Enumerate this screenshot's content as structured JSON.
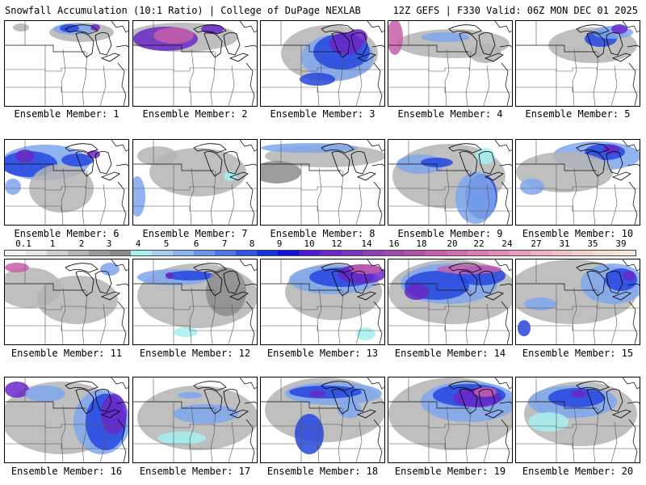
{
  "header": {
    "left": "Snowfall Accumulation (10:1 Ratio) | College of DuPage NEXLAB",
    "right": "12Z GEFS | F330 Valid: 06Z MON DEC 01 2025"
  },
  "colorbar": {
    "labels": [
      "0.1",
      "1",
      "2",
      "3",
      "4",
      "5",
      "6",
      "7",
      "8",
      "9",
      "10",
      "12",
      "14",
      "16",
      "18",
      "20",
      "22",
      "24",
      "27",
      "31",
      "35",
      "39"
    ],
    "colors": [
      "#f4f4f4",
      "#e6e6e6",
      "#cfcfcf",
      "#b6b6b6",
      "#9c9c9c",
      "#8a8a8a",
      "#a6f0f0",
      "#a7cdf1",
      "#88b4ef",
      "#6d97ea",
      "#4d78e6",
      "#2f55e2",
      "#1631de",
      "#1010d8",
      "#4b1ad2",
      "#6a28c8",
      "#7d35bf",
      "#8f40b6",
      "#a048ad",
      "#b452a8",
      "#c65ea9",
      "#d46cb0",
      "#de7bb7",
      "#e58cbb",
      "#ea9fbf",
      "#eeb2c2",
      "#f0c3c6",
      "#f2d3cc",
      "#f3dfd3",
      "#f4e8dc"
    ]
  },
  "members": [
    {
      "label": "Ensemble Member: 1"
    },
    {
      "label": "Ensemble Member: 2"
    },
    {
      "label": "Ensemble Member: 3"
    },
    {
      "label": "Ensemble Member: 4"
    },
    {
      "label": "Ensemble Member: 5"
    },
    {
      "label": "Ensemble Member: 6"
    },
    {
      "label": "Ensemble Member: 7"
    },
    {
      "label": "Ensemble Member: 8"
    },
    {
      "label": "Ensemble Member: 9"
    },
    {
      "label": "Ensemble Member: 10"
    },
    {
      "label": "Ensemble Member: 11"
    },
    {
      "label": "Ensemble Member: 12"
    },
    {
      "label": "Ensemble Member: 13"
    },
    {
      "label": "Ensemble Member: 14"
    },
    {
      "label": "Ensemble Member: 15"
    },
    {
      "label": "Ensemble Member: 16"
    },
    {
      "label": "Ensemble Member: 17"
    },
    {
      "label": "Ensemble Member: 18"
    },
    {
      "label": "Ensemble Member: 19"
    },
    {
      "label": "Ensemble Member: 20"
    }
  ]
}
